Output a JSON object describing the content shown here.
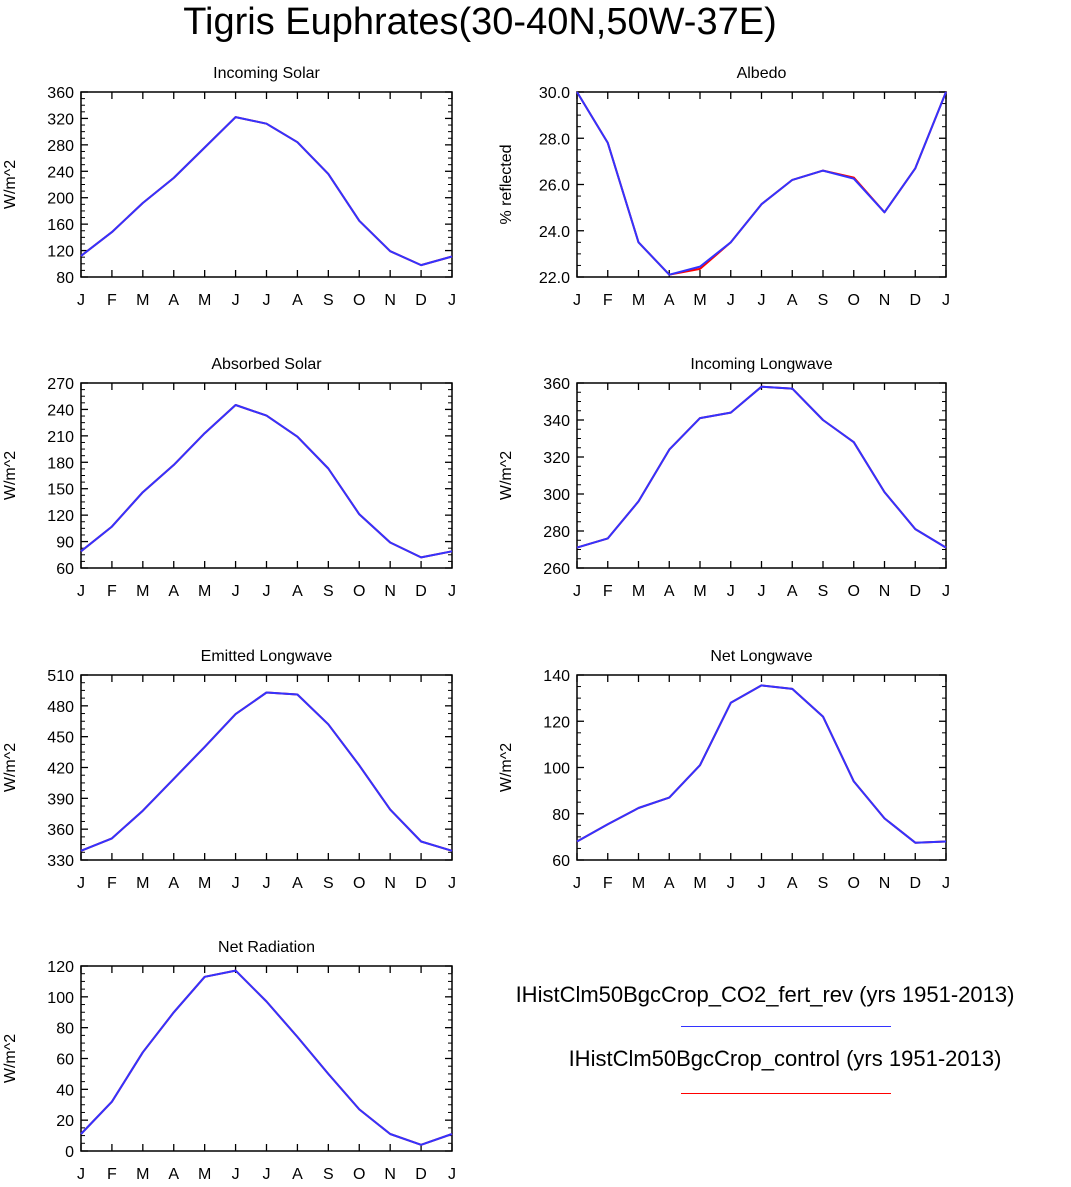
{
  "title": "Tigris Euphrates(30-40N,50W-37E)",
  "months": [
    "J",
    "F",
    "M",
    "A",
    "M",
    "J",
    "J",
    "A",
    "S",
    "O",
    "N",
    "D",
    "J"
  ],
  "legend": [
    {
      "label": "IHistClm50BgcCrop_CO2_fert_rev (yrs 1951-2013)",
      "color": "#3333ff"
    },
    {
      "label": "IHistClm50BgcCrop_control (yrs 1951-2013)",
      "color": "#ff0000"
    }
  ],
  "chart_data": [
    {
      "type": "line",
      "title": "Incoming Solar",
      "ylabel": "W/m^2",
      "ylim": [
        80,
        360
      ],
      "yticks": [
        "80",
        "120",
        "160",
        "200",
        "240",
        "280",
        "320",
        "360"
      ],
      "series": [
        {
          "name": "IHistClm50BgcCrop_control (yrs 1951-2013)",
          "color": "#ff0000",
          "values": [
            112,
            148,
            192,
            230,
            276,
            322,
            312,
            284,
            236,
            165,
            119,
            98,
            111
          ]
        },
        {
          "name": "IHistClm50BgcCrop_CO2_fert_rev (yrs 1951-2013)",
          "color": "#3333ff",
          "values": [
            112,
            148,
            192,
            230,
            276,
            322,
            312,
            284,
            236,
            165,
            119,
            98,
            111
          ]
        }
      ]
    },
    {
      "type": "line",
      "title": "Albedo",
      "ylabel": "% reflected",
      "ylim": [
        22,
        30
      ],
      "yticks": [
        "22.0",
        "24.0",
        "26.0",
        "28.0",
        "30.0"
      ],
      "series": [
        {
          "name": "IHistClm50BgcCrop_control (yrs 1951-2013)",
          "color": "#ff0000",
          "values": [
            30.0,
            27.8,
            23.5,
            22.1,
            22.35,
            23.5,
            25.15,
            26.2,
            26.6,
            26.3,
            24.8,
            26.7,
            30.0
          ]
        },
        {
          "name": "IHistClm50BgcCrop_CO2_fert_rev (yrs 1951-2013)",
          "color": "#3333ff",
          "values": [
            30.0,
            27.8,
            23.5,
            22.1,
            22.45,
            23.5,
            25.15,
            26.2,
            26.6,
            26.25,
            24.8,
            26.7,
            30.0
          ]
        }
      ]
    },
    {
      "type": "line",
      "title": "Absorbed Solar",
      "ylabel": "W/m^2",
      "ylim": [
        60,
        270
      ],
      "yticks": [
        "60",
        "90",
        "120",
        "150",
        "180",
        "210",
        "240",
        "270"
      ],
      "series": [
        {
          "name": "IHistClm50BgcCrop_control (yrs 1951-2013)",
          "color": "#ff0000",
          "values": [
            79,
            107,
            146,
            177,
            213,
            245,
            233,
            209,
            173,
            121,
            89,
            72,
            79
          ]
        },
        {
          "name": "IHistClm50BgcCrop_CO2_fert_rev (yrs 1951-2013)",
          "color": "#3333ff",
          "values": [
            79,
            107,
            146,
            177,
            213,
            245,
            233,
            209,
            173,
            121,
            89,
            72,
            79
          ]
        }
      ]
    },
    {
      "type": "line",
      "title": "Incoming Longwave",
      "ylabel": "W/m^2",
      "ylim": [
        260,
        360
      ],
      "yticks": [
        "260",
        "280",
        "300",
        "320",
        "340",
        "360"
      ],
      "series": [
        {
          "name": "IHistClm50BgcCrop_control (yrs 1951-2013)",
          "color": "#ff0000",
          "values": [
            271,
            276,
            296,
            324,
            341,
            344,
            358,
            357,
            340,
            328,
            301,
            281,
            271
          ]
        },
        {
          "name": "IHistClm50BgcCrop_CO2_fert_rev (yrs 1951-2013)",
          "color": "#3333ff",
          "values": [
            271,
            276,
            296,
            324,
            341,
            344,
            358,
            357,
            340,
            328,
            301,
            281,
            271
          ]
        }
      ]
    },
    {
      "type": "line",
      "title": "Emitted Longwave",
      "ylabel": "W/m^2",
      "ylim": [
        330,
        510
      ],
      "yticks": [
        "330",
        "360",
        "390",
        "420",
        "450",
        "480",
        "510"
      ],
      "series": [
        {
          "name": "IHistClm50BgcCrop_control (yrs 1951-2013)",
          "color": "#ff0000",
          "values": [
            339,
            351,
            378,
            409,
            440,
            472,
            493,
            491,
            462,
            422,
            379,
            348,
            339
          ]
        },
        {
          "name": "IHistClm50BgcCrop_CO2_fert_rev (yrs 1951-2013)",
          "color": "#3333ff",
          "values": [
            339,
            351,
            378,
            409,
            440,
            472,
            493,
            491,
            462,
            422,
            379,
            348,
            339
          ]
        }
      ]
    },
    {
      "type": "line",
      "title": "Net Longwave",
      "ylabel": "W/m^2",
      "ylim": [
        60,
        140
      ],
      "yticks": [
        "60",
        "80",
        "100",
        "120",
        "140"
      ],
      "series": [
        {
          "name": "IHistClm50BgcCrop_control (yrs 1951-2013)",
          "color": "#ff0000",
          "values": [
            68,
            75.5,
            82.5,
            87,
            101,
            128,
            135.5,
            134,
            122,
            94,
            78,
            67.5,
            68
          ]
        },
        {
          "name": "IHistClm50BgcCrop_CO2_fert_rev (yrs 1951-2013)",
          "color": "#3333ff",
          "values": [
            68,
            75.5,
            82.5,
            87,
            101,
            128,
            135.5,
            134,
            122,
            94,
            78,
            67.5,
            68
          ]
        }
      ]
    },
    {
      "type": "line",
      "title": "Net Radiation",
      "ylabel": "W/m^2",
      "ylim": [
        0,
        120
      ],
      "yticks": [
        "0",
        "20",
        "40",
        "60",
        "80",
        "100",
        "120"
      ],
      "series": [
        {
          "name": "IHistClm50BgcCrop_control (yrs 1951-2013)",
          "color": "#ff0000",
          "values": [
            11,
            32,
            64,
            90,
            113,
            117,
            97,
            74,
            50,
            27,
            11,
            4,
            11
          ]
        },
        {
          "name": "IHistClm50BgcCrop_CO2_fert_rev (yrs 1951-2013)",
          "color": "#3333ff",
          "values": [
            11,
            32,
            64,
            90,
            113,
            117,
            97,
            74,
            50,
            27,
            11,
            4,
            11
          ]
        }
      ]
    }
  ]
}
